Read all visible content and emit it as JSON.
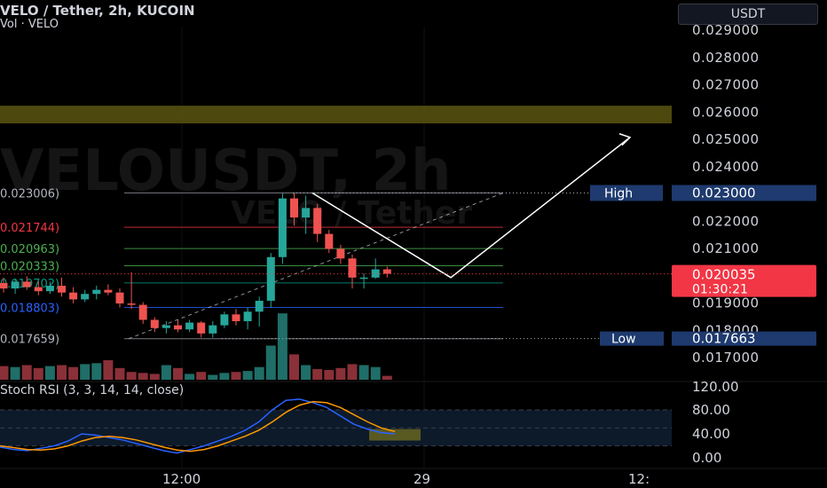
{
  "header": {
    "symbol_line": "VELO / Tether, 2h, KUCOIN",
    "volume_line": "Vol · VELO",
    "currency_button": "USDT",
    "watermark_line1": "VELOUSDT, 2h",
    "watermark_line2": "VELO / Tether"
  },
  "price_axis": {
    "labels": [
      "0.029000",
      "0.028000",
      "0.027000",
      "0.026000",
      "0.025000",
      "0.024000",
      "0.022000",
      "0.021000",
      "0.019000",
      "0.018000",
      "0.017000"
    ],
    "values": [
      0.029,
      0.028,
      0.027,
      0.026,
      0.025,
      0.024,
      0.022,
      0.021,
      0.019,
      0.018,
      0.017
    ]
  },
  "markers": {
    "high_label": "High",
    "high_value": "0.023000",
    "low_label": "Low",
    "low_value": "0.017663",
    "current_price": "0.020035",
    "countdown": "01:30:21"
  },
  "fib_levels": [
    {
      "label": "0.023006)",
      "value": 0.023006,
      "color": "#9598a1"
    },
    {
      "label": "0.021744)",
      "value": 0.021744,
      "color": "#f23645"
    },
    {
      "label": "0.020963)",
      "value": 0.020963,
      "color": "#4caf50"
    },
    {
      "label": "0.020333)",
      "value": 0.020333,
      "color": "#4caf50"
    },
    {
      "label": "0.019702)",
      "value": 0.019702,
      "color": "#089981"
    },
    {
      "label": "0.018803)",
      "value": 0.018803,
      "color": "#2962ff"
    },
    {
      "label": "0.017659)",
      "value": 0.017659,
      "color": "#9598a1"
    }
  ],
  "resistance_zone": {
    "from": 0.02555,
    "to": 0.0262,
    "color": "#5a5510"
  },
  "projection_path": {
    "points": [
      [
        0.023,
        "peak"
      ],
      [
        0.0199,
        "dip"
      ],
      [
        0.02504,
        "target"
      ]
    ]
  },
  "stoch_rsi": {
    "title": "Stoch RSI (3, 3, 14, 14, close)",
    "axis_labels": [
      "120.00",
      "80.00",
      "40.00",
      "0.00"
    ],
    "axis_values": [
      120,
      80,
      40,
      0
    ],
    "band": [
      20,
      80
    ],
    "k": [
      18,
      14,
      12,
      16,
      20,
      28,
      40,
      38,
      34,
      30,
      24,
      18,
      12,
      8,
      14,
      20,
      28,
      36,
      46,
      60,
      80,
      96,
      98,
      92,
      84,
      70,
      56,
      48,
      42,
      40
    ],
    "d": [
      20,
      17,
      14,
      13,
      15,
      20,
      28,
      34,
      36,
      34,
      30,
      24,
      18,
      13,
      11,
      14,
      20,
      28,
      36,
      46,
      60,
      76,
      88,
      94,
      92,
      84,
      72,
      60,
      50,
      44
    ]
  },
  "time_axis": {
    "labels": [
      "12:00",
      "29",
      "12:"
    ]
  },
  "chart_data": {
    "type": "candlestick",
    "title": "VELO / Tether, 2h, KUCOIN",
    "ylim": [
      0.0165,
      0.0297
    ],
    "candles": [
      {
        "o": 0.0197,
        "h": 0.0199,
        "l": 0.01935,
        "c": 0.0195
      },
      {
        "o": 0.0195,
        "h": 0.01985,
        "l": 0.0193,
        "c": 0.01975
      },
      {
        "o": 0.01975,
        "h": 0.01995,
        "l": 0.01945,
        "c": 0.01955
      },
      {
        "o": 0.01955,
        "h": 0.01975,
        "l": 0.01925,
        "c": 0.0194
      },
      {
        "o": 0.0194,
        "h": 0.01975,
        "l": 0.0193,
        "c": 0.0196
      },
      {
        "o": 0.0196,
        "h": 0.0199,
        "l": 0.0192,
        "c": 0.01935
      },
      {
        "o": 0.01935,
        "h": 0.01955,
        "l": 0.01895,
        "c": 0.0191
      },
      {
        "o": 0.0191,
        "h": 0.01945,
        "l": 0.019,
        "c": 0.0193
      },
      {
        "o": 0.0193,
        "h": 0.0196,
        "l": 0.0191,
        "c": 0.01945
      },
      {
        "o": 0.01945,
        "h": 0.01965,
        "l": 0.01925,
        "c": 0.01935
      },
      {
        "o": 0.01935,
        "h": 0.0195,
        "l": 0.0188,
        "c": 0.01895
      },
      {
        "o": 0.01895,
        "h": 0.0201,
        "l": 0.01875,
        "c": 0.0189
      },
      {
        "o": 0.0189,
        "h": 0.019,
        "l": 0.0182,
        "c": 0.01835
      },
      {
        "o": 0.01835,
        "h": 0.01845,
        "l": 0.0179,
        "c": 0.01805
      },
      {
        "o": 0.01805,
        "h": 0.0183,
        "l": 0.01785,
        "c": 0.01815
      },
      {
        "o": 0.01815,
        "h": 0.01835,
        "l": 0.0179,
        "c": 0.018
      },
      {
        "o": 0.018,
        "h": 0.01835,
        "l": 0.0179,
        "c": 0.01825
      },
      {
        "o": 0.01825,
        "h": 0.0183,
        "l": 0.0177,
        "c": 0.01785
      },
      {
        "o": 0.01785,
        "h": 0.0183,
        "l": 0.0177,
        "c": 0.01815
      },
      {
        "o": 0.01815,
        "h": 0.01865,
        "l": 0.01805,
        "c": 0.01855
      },
      {
        "o": 0.01855,
        "h": 0.01875,
        "l": 0.01815,
        "c": 0.0183
      },
      {
        "o": 0.0183,
        "h": 0.0188,
        "l": 0.018,
        "c": 0.01865
      },
      {
        "o": 0.01865,
        "h": 0.0192,
        "l": 0.0181,
        "c": 0.01905
      },
      {
        "o": 0.01905,
        "h": 0.0208,
        "l": 0.0188,
        "c": 0.02065
      },
      {
        "o": 0.02065,
        "h": 0.023,
        "l": 0.0204,
        "c": 0.0228
      },
      {
        "o": 0.0228,
        "h": 0.023,
        "l": 0.0218,
        "c": 0.0221
      },
      {
        "o": 0.0221,
        "h": 0.0229,
        "l": 0.0215,
        "c": 0.02245
      },
      {
        "o": 0.02245,
        "h": 0.0226,
        "l": 0.0212,
        "c": 0.0215
      },
      {
        "o": 0.0215,
        "h": 0.02165,
        "l": 0.0208,
        "c": 0.02095
      },
      {
        "o": 0.02095,
        "h": 0.0211,
        "l": 0.0204,
        "c": 0.0206
      },
      {
        "o": 0.0206,
        "h": 0.02075,
        "l": 0.0195,
        "c": 0.0199
      },
      {
        "o": 0.0199,
        "h": 0.02005,
        "l": 0.0195,
        "c": 0.0199
      },
      {
        "o": 0.0199,
        "h": 0.0206,
        "l": 0.01985,
        "c": 0.0202
      },
      {
        "o": 0.0202,
        "h": 0.0203,
        "l": 0.0199,
        "c": 0.02004
      }
    ],
    "volume": [
      14,
      13,
      15,
      12,
      14,
      15,
      13,
      16,
      17,
      20,
      12,
      8,
      7,
      6,
      15,
      12,
      6,
      8,
      5,
      7,
      8,
      9,
      13,
      35,
      68,
      26,
      15,
      11,
      10,
      12,
      16,
      15,
      13,
      4
    ]
  }
}
